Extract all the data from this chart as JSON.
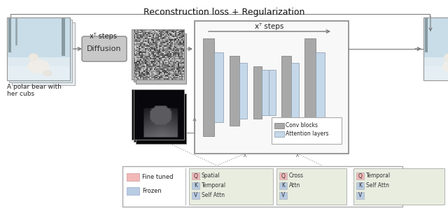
{
  "title": "Reconstruction loss + Regularization",
  "caption": "A polar bear with\nher cubs",
  "diffusion_label": "Diffusion",
  "xt_steps_left": "xᵀ steps",
  "xt_steps_top": "xᵀ steps",
  "conv_blocks_label": "Conv blocks",
  "attention_layers_label": "Attention layers",
  "legend_finetuned": "Fine tuned",
  "legend_frozen": "Frozen",
  "bg_color": "#ffffff",
  "conv_color": "#a8a8a8",
  "attn_color": "#c5d8ea",
  "qkv_box_bg": "#e8ede0",
  "unet_box_bg": "#f8f8f8",
  "diffusion_box_bg": "#c8c8c8",
  "fine_tuned_color": "#f2b8b8",
  "frozen_color": "#b8cce4",
  "groups": [
    {
      "descs": [
        "Spatial",
        "Temporal",
        "Self Attn"
      ]
    },
    {
      "descs": [
        "Cross",
        "Attn",
        ""
      ]
    },
    {
      "descs": [
        "Temporal",
        "Self Attn",
        ""
      ]
    }
  ]
}
